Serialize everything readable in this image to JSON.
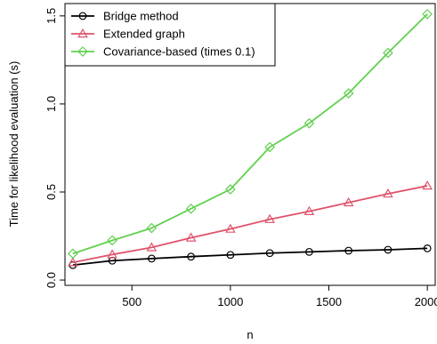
{
  "chart_data": {
    "type": "line",
    "title": "",
    "xlabel": "n",
    "ylabel": "Time for likelihood evaluation (s)",
    "x": [
      200,
      400,
      600,
      800,
      1000,
      1200,
      1400,
      1600,
      1800,
      2000
    ],
    "xlim": [
      160,
      2040
    ],
    "ylim": [
      -0.03,
      1.57
    ],
    "xticks": [
      500,
      1000,
      1500,
      2000
    ],
    "xtick_labels": [
      "500",
      "1000",
      "1500",
      "2000"
    ],
    "yticks": [
      0.0,
      0.5,
      1.0,
      1.5
    ],
    "ytick_labels": [
      "0.0",
      "0.5",
      "1.0",
      "1.5"
    ],
    "grid": false,
    "legend_position": "top-left",
    "series": [
      {
        "name": "Bridge method",
        "color": "#000000",
        "marker": "circle",
        "values": [
          0.085,
          0.11,
          0.122,
          0.133,
          0.143,
          0.153,
          0.16,
          0.167,
          0.172,
          0.18
        ]
      },
      {
        "name": "Extended graph",
        "color": "#DF536B",
        "marker": "triangle",
        "values": [
          0.1,
          0.145,
          0.185,
          0.24,
          0.29,
          0.345,
          0.39,
          0.44,
          0.49,
          0.535
        ]
      },
      {
        "name": "Covariance-based (times 0.1)",
        "color": "#61D04F",
        "marker": "diamond",
        "values": [
          0.15,
          0.225,
          0.295,
          0.405,
          0.515,
          0.755,
          0.89,
          1.06,
          1.29,
          1.51
        ]
      }
    ]
  }
}
